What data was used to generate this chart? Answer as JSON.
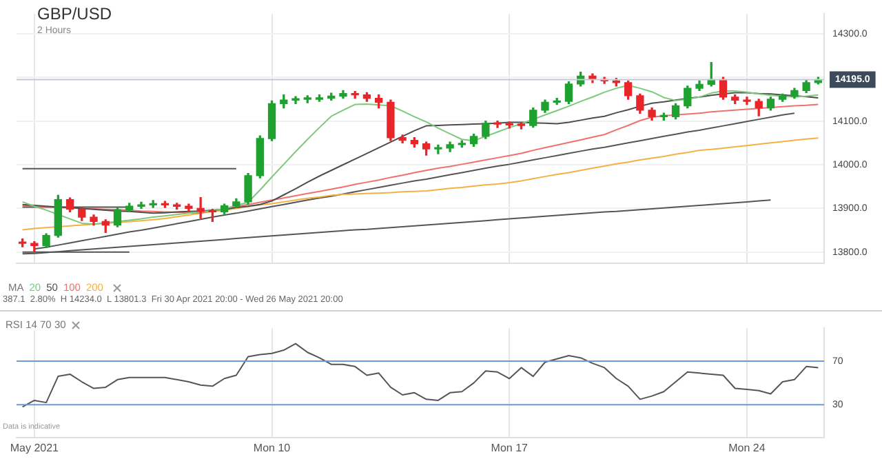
{
  "chart_data": [
    {
      "type": "candlestick",
      "title": "GBP/USD",
      "subtitle": "2 Hours",
      "legend_title": "MA",
      "legend": "bottom left",
      "grid": true,
      "tick_labels": "y",
      "categories": [
        null,
        null,
        null,
        null,
        null,
        null,
        null,
        null,
        null,
        null,
        null,
        null,
        null,
        null,
        null,
        null,
        null,
        null,
        null,
        null,
        null,
        null,
        null,
        null,
        null,
        null,
        null,
        null,
        null,
        null,
        null,
        null,
        null,
        null,
        null,
        null,
        null,
        null,
        null,
        null,
        null,
        null,
        null,
        null,
        null,
        null,
        null,
        null,
        null,
        null,
        null,
        null,
        null,
        null,
        null,
        null,
        null,
        null,
        null,
        null,
        null,
        null,
        null,
        null,
        null,
        null,
        null,
        null
      ],
      "ohlc": [
        [
          13822,
          13830,
          13812,
          13820
        ],
        [
          13820,
          13824,
          13802,
          13815
        ],
        [
          13815,
          13842,
          13810,
          13838
        ],
        [
          13838,
          13930,
          13834,
          13920
        ],
        [
          13920,
          13924,
          13892,
          13898
        ],
        [
          13898,
          13902,
          13872,
          13880
        ],
        [
          13880,
          13885,
          13862,
          13870
        ],
        [
          13870,
          13874,
          13845,
          13862
        ],
        [
          13862,
          13902,
          13858,
          13897
        ],
        [
          13897,
          13912,
          13892,
          13905
        ],
        [
          13905,
          13914,
          13900,
          13908
        ],
        [
          13908,
          13918,
          13902,
          13910
        ],
        [
          13910,
          13916,
          13902,
          13908
        ],
        [
          13908,
          13912,
          13898,
          13905
        ],
        [
          13905,
          13910,
          13892,
          13900
        ],
        [
          13900,
          13925,
          13878,
          13893
        ],
        [
          13893,
          13898,
          13870,
          13892
        ],
        [
          13892,
          13910,
          13888,
          13906
        ],
        [
          13906,
          13922,
          13902,
          13915
        ],
        [
          13915,
          13980,
          13910,
          13975
        ],
        [
          13975,
          14066,
          13970,
          14060
        ],
        [
          14060,
          14146,
          14055,
          14140
        ],
        [
          14140,
          14160,
          14130,
          14148
        ],
        [
          14148,
          14156,
          14140,
          14150
        ],
        [
          14150,
          14158,
          14142,
          14150
        ],
        [
          14150,
          14160,
          14145,
          14152
        ],
        [
          14152,
          14164,
          14148,
          14157
        ],
        [
          14157,
          14170,
          14152,
          14163
        ],
        [
          14163,
          14168,
          14152,
          14160
        ],
        [
          14160,
          14165,
          14145,
          14152
        ],
        [
          14152,
          14160,
          14130,
          14143
        ],
        [
          14143,
          14148,
          14055,
          14062
        ],
        [
          14062,
          14068,
          14050,
          14056
        ],
        [
          14056,
          14062,
          14040,
          14048
        ],
        [
          14048,
          14052,
          14022,
          14036
        ],
        [
          14036,
          14045,
          14025,
          14038
        ],
        [
          14038,
          14052,
          14030,
          14046
        ],
        [
          14046,
          14055,
          14040,
          14048
        ],
        [
          14048,
          14070,
          14042,
          14065
        ],
        [
          14065,
          14100,
          14060,
          14095
        ],
        [
          14095,
          14100,
          14085,
          14093
        ],
        [
          14093,
          14098,
          14084,
          14091
        ],
        [
          14091,
          14097,
          14082,
          14090
        ],
        [
          14090,
          14130,
          14086,
          14125
        ],
        [
          14125,
          14148,
          14120,
          14143
        ],
        [
          14143,
          14152,
          14138,
          14145
        ],
        [
          14145,
          14190,
          14140,
          14185
        ],
        [
          14185,
          14212,
          14180,
          14203
        ],
        [
          14203,
          14208,
          14188,
          14195
        ],
        [
          14195,
          14200,
          14186,
          14192
        ],
        [
          14192,
          14198,
          14180,
          14188
        ],
        [
          14188,
          14192,
          14150,
          14158
        ],
        [
          14158,
          14162,
          14118,
          14125
        ],
        [
          14125,
          14130,
          14102,
          14110
        ],
        [
          14110,
          14118,
          14102,
          14110
        ],
        [
          14110,
          14140,
          14105,
          14135
        ],
        [
          14135,
          14180,
          14130,
          14175
        ],
        [
          14175,
          14192,
          14170,
          14184
        ],
        [
          14184,
          14234,
          14180,
          14195
        ],
        [
          14195,
          14200,
          14150,
          14155
        ],
        [
          14155,
          14160,
          14140,
          14148
        ],
        [
          14148,
          14155,
          14138,
          14145
        ],
        [
          14145,
          14150,
          14112,
          14130
        ],
        [
          14130,
          14155,
          14125,
          14150
        ],
        [
          14150,
          14162,
          14145,
          14157
        ],
        [
          14157,
          14175,
          14152,
          14170
        ],
        [
          14170,
          14193,
          14165,
          14188
        ],
        [
          14188,
          14200,
          14185,
          14195
        ]
      ],
      "colors": [
        "#e8262a",
        "#e8262a",
        "#1fa12f",
        "#1fa12f",
        "#e8262a",
        "#e8262a",
        "#e8262a",
        "#e8262a",
        "#1fa12f",
        "#1fa12f",
        "#1fa12f",
        "#1fa12f",
        "#e8262a",
        "#e8262a",
        "#e8262a",
        "#e8262a",
        "#e8262a",
        "#1fa12f",
        "#1fa12f",
        "#1fa12f",
        "#1fa12f",
        "#1fa12f",
        "#1fa12f",
        "#1fa12f",
        "#1fa12f",
        "#1fa12f",
        "#1fa12f",
        "#1fa12f",
        "#e8262a",
        "#e8262a",
        "#e8262a",
        "#e8262a",
        "#e8262a",
        "#e8262a",
        "#e8262a",
        "#1fa12f",
        "#1fa12f",
        "#1fa12f",
        "#1fa12f",
        "#1fa12f",
        "#e8262a",
        "#e8262a",
        "#e8262a",
        "#1fa12f",
        "#1fa12f",
        "#1fa12f",
        "#1fa12f",
        "#1fa12f",
        "#e8262a",
        "#e8262a",
        "#e8262a",
        "#e8262a",
        "#e8262a",
        "#e8262a",
        "#1fa12f",
        "#1fa12f",
        "#1fa12f",
        "#1fa12f",
        "#1fa12f",
        "#e8262a",
        "#e8262a",
        "#e8262a",
        "#e8262a",
        "#1fa12f",
        "#1fa12f",
        "#1fa12f",
        "#1fa12f",
        "#1fa12f"
      ],
      "series": [
        {
          "name": "20",
          "type": "line",
          "color": "#7cc97c",
          "values": [
            13915,
            13905,
            13896,
            13886,
            13876,
            13866,
            13864,
            13867,
            13870,
            13873,
            13876,
            13880,
            13883,
            13886,
            13889,
            13892,
            13895,
            13899,
            13907,
            13914,
            13942,
            13972,
            14001,
            14030,
            14058,
            14085,
            14111,
            14125,
            14138,
            14139,
            14137,
            14135,
            14123,
            14110,
            14098,
            14084,
            14071,
            14058,
            14055,
            14065,
            14075,
            14085,
            14094,
            14104,
            14114,
            14124,
            14134,
            14145,
            14155,
            14166,
            14175,
            14182,
            14175,
            14167,
            14154,
            14147,
            14150,
            14155,
            14164,
            14169,
            14169,
            14166,
            14162,
            14159,
            14157,
            14155,
            14157,
            14160
          ]
        },
        {
          "name": "50",
          "type": "line",
          "color": "#4d4d4d",
          "values": [
            13909,
            13907,
            13905,
            13903,
            13902,
            13900,
            13898,
            13896,
            13894,
            13893,
            13891,
            13889,
            13890,
            13892,
            13893,
            13894,
            13896,
            13898,
            13902,
            13905,
            13909,
            13917,
            13931,
            13945,
            13960,
            13974,
            13987,
            14000,
            14013,
            14026,
            14039,
            14052,
            14065,
            14078,
            14089,
            14090,
            14091,
            14092,
            14093,
            14094,
            14095,
            14097,
            14097,
            14096,
            14095,
            14094,
            14097,
            14102,
            14107,
            14111,
            14119,
            14126,
            14134,
            14141,
            14144,
            14148,
            14152,
            14155,
            14159,
            14162,
            14165,
            14165,
            14163,
            14162,
            14160,
            14158,
            14156,
            14153
          ]
        },
        {
          "name": "100",
          "type": "line",
          "color": "#f07070",
          "values": [
            13906,
            13905,
            13903,
            13902,
            13901,
            13900,
            13899,
            13898,
            13897,
            13896,
            13894,
            13893,
            13892,
            13891,
            13890,
            13889,
            13895,
            13899,
            13904,
            13909,
            13914,
            13919,
            13924,
            13929,
            13934,
            13939,
            13944,
            13949,
            13955,
            13960,
            13965,
            13971,
            13976,
            13982,
            13987,
            13992,
            13996,
            14001,
            14006,
            14011,
            14016,
            14021,
            14026,
            14033,
            14039,
            14045,
            14051,
            14057,
            14063,
            14069,
            14080,
            14090,
            14101,
            14109,
            14112,
            14114,
            14116,
            14118,
            14121,
            14123,
            14125,
            14127,
            14129,
            14131,
            14133,
            14135,
            14136,
            14138
          ]
        },
        {
          "name": "200",
          "type": "line",
          "color": "#f5b041",
          "values": [
            13851,
            13854,
            13856,
            13858,
            13860,
            13862,
            13864,
            13866,
            13868,
            13870,
            13872,
            13874,
            13877,
            13881,
            13885,
            13889,
            13893,
            13896,
            13900,
            13904,
            13908,
            13911,
            13915,
            13919,
            13923,
            13926,
            13930,
            13932,
            13933,
            13934,
            13935,
            13936,
            13938,
            13939,
            13940,
            13943,
            13946,
            13948,
            13951,
            13954,
            13956,
            13959,
            13963,
            13968,
            13973,
            13978,
            13982,
            13987,
            13992,
            13997,
            14002,
            14006,
            14011,
            14015,
            14019,
            14024,
            14028,
            14033,
            14035,
            14038,
            14041,
            14044,
            14047,
            14050,
            14053,
            14056,
            14059,
            14061
          ]
        },
        {
          "type": "line",
          "color": "#555555",
          "values": [
            13796,
            13797,
            13799,
            13801,
            13803,
            13805,
            13807,
            13809,
            13811,
            13813,
            13815,
            13817,
            13819,
            13821,
            13823,
            13825,
            13827,
            13829,
            13831,
            13833,
            13835,
            13837,
            13839,
            13841,
            13843,
            13845,
            13847,
            13849,
            13851,
            13852,
            13854,
            13856,
            13858,
            13860,
            13862,
            13864,
            13866,
            13868,
            13870,
            13872,
            13874,
            13876,
            13878,
            13880,
            13882,
            13884,
            13886,
            13888,
            13890,
            13892,
            13893,
            13895,
            13897,
            13899,
            13901,
            13903,
            13905,
            13907,
            13909,
            13911,
            13913,
            13915,
            13917,
            13919,
            null,
            null,
            null,
            null
          ]
        },
        {
          "type": "line",
          "color": "#555555",
          "values": [
            null,
            13807,
            13811,
            13816,
            13821,
            13826,
            13831,
            13836,
            13841,
            13846,
            13850,
            13855,
            13860,
            13865,
            13870,
            13875,
            13880,
            13885,
            13889,
            13894,
            13899,
            13904,
            13909,
            13914,
            13919,
            13924,
            13928,
            13933,
            13938,
            13943,
            13948,
            13953,
            13958,
            13963,
            13967,
            13972,
            13977,
            13982,
            13987,
            13992,
            13997,
            14001,
            14006,
            14011,
            14016,
            14021,
            14026,
            14031,
            14036,
            14040,
            14045,
            14050,
            14055,
            14060,
            14065,
            14070,
            14075,
            14079,
            14084,
            14089,
            14094,
            14099,
            14104,
            14109,
            14114,
            14118,
            null,
            null
          ]
        },
        {
          "type": "line",
          "color": "#555555",
          "values": [
            13991,
            13991,
            13991,
            13991,
            13991,
            13991,
            13991,
            13991,
            13991,
            13991,
            13991,
            13991,
            13991,
            13991,
            13991,
            13991,
            13991,
            13991,
            13991,
            null,
            null,
            null,
            null,
            null,
            null,
            null,
            null,
            null,
            null,
            null,
            null,
            null,
            null,
            null,
            null,
            null,
            null,
            null,
            null,
            null,
            null,
            null,
            null,
            null,
            null,
            null,
            null,
            null,
            null,
            null,
            null,
            null,
            null,
            null,
            null,
            null,
            null,
            null,
            null,
            null,
            null,
            null,
            null,
            null,
            null,
            null,
            null,
            null
          ]
        },
        {
          "type": "line",
          "color": "#555555",
          "values": [
            13903,
            13903,
            13903,
            13903,
            13903,
            13903,
            13903,
            13903,
            13903,
            13903,
            null,
            null,
            null,
            null,
            null,
            null,
            null,
            null,
            null,
            null,
            null,
            null,
            null,
            null,
            null,
            null,
            null,
            null,
            null,
            null,
            null,
            null,
            null,
            null,
            null,
            null,
            null,
            null,
            null,
            null,
            null,
            null,
            null,
            null,
            null,
            null,
            null,
            null,
            null,
            null,
            null,
            null,
            null,
            null,
            null,
            null,
            null,
            null,
            null,
            null,
            null,
            null,
            null,
            null,
            null,
            null,
            null,
            null
          ]
        },
        {
          "type": "line",
          "color": "#555555",
          "values": [
            13800,
            13800,
            13800,
            13800,
            13800,
            13800,
            13800,
            13800,
            13800,
            13800,
            null,
            null,
            null,
            null,
            null,
            null,
            null,
            null,
            null,
            null,
            null,
            null,
            null,
            null,
            null,
            null,
            null,
            null,
            null,
            null,
            null,
            null,
            null,
            null,
            null,
            null,
            null,
            null,
            null,
            null,
            null,
            null,
            null,
            null,
            null,
            null,
            null,
            null,
            null,
            null,
            null,
            null,
            null,
            null,
            null,
            null,
            null,
            null,
            null,
            null,
            null,
            null,
            null,
            null,
            null,
            null,
            null,
            null
          ]
        }
      ],
      "ylim": [
        13775,
        14345
      ],
      "yticks": [
        {
          "value": 13800,
          "label": "13800.0"
        },
        {
          "value": 13900,
          "label": "13900.0"
        },
        {
          "value": 14000,
          "label": "14000.0"
        },
        {
          "value": 14100,
          "label": "14100.0"
        },
        {
          "value": 14200,
          "label": null
        },
        {
          "value": 14300,
          "label": "14300.0"
        }
      ],
      "ref_lines": [
        {
          "axis": "y",
          "value": 14195,
          "label": "14195.0",
          "color": "#c4c8d8"
        }
      ],
      "annotations": [
        "387.1  2.80%  H 14234.0  L 13801.3  Fri 30 Apr 2021 20:00 - Wed 26 May 2021 20:00"
      ]
    },
    {
      "type": "line",
      "title": "RSI 14 70 30",
      "grid": "x",
      "categories": [
        null,
        "May 2021",
        null,
        null,
        null,
        null,
        null,
        null,
        null,
        null,
        null,
        null,
        null,
        null,
        null,
        null,
        null,
        null,
        null,
        null,
        null,
        "Mon 10",
        null,
        null,
        null,
        null,
        null,
        null,
        null,
        null,
        null,
        null,
        null,
        null,
        null,
        null,
        null,
        null,
        null,
        null,
        null,
        "Mon 17",
        null,
        null,
        null,
        null,
        null,
        null,
        null,
        null,
        null,
        null,
        null,
        null,
        null,
        null,
        null,
        null,
        null,
        null,
        null,
        "Mon 24",
        null,
        null,
        null,
        null,
        null,
        null
      ],
      "series": [
        {
          "color": "#555555",
          "values": [
            28,
            34,
            32,
            56,
            58,
            51,
            45,
            46,
            53,
            55,
            55,
            55,
            55,
            53,
            51,
            48,
            47,
            54,
            57,
            74,
            76,
            77,
            80,
            86,
            78,
            73,
            67,
            67,
            65,
            57,
            59,
            46,
            39,
            41,
            35,
            34,
            41,
            42,
            50,
            61,
            60,
            54,
            64,
            56,
            69,
            72,
            75,
            73,
            68,
            64,
            54,
            47,
            35,
            38,
            42,
            51,
            60,
            59,
            58,
            57,
            45,
            44,
            43,
            40,
            51,
            53,
            65,
            64
          ]
        }
      ],
      "ylim": [
        0,
        100
      ],
      "yticks": [
        30,
        70
      ],
      "ref_lines": [
        {
          "axis": "y",
          "value": 70,
          "color": "#6a9bd8"
        },
        {
          "axis": "y",
          "value": 30,
          "color": "#6a9bd8"
        }
      ],
      "annotations": [
        "Data is indicative"
      ]
    }
  ]
}
